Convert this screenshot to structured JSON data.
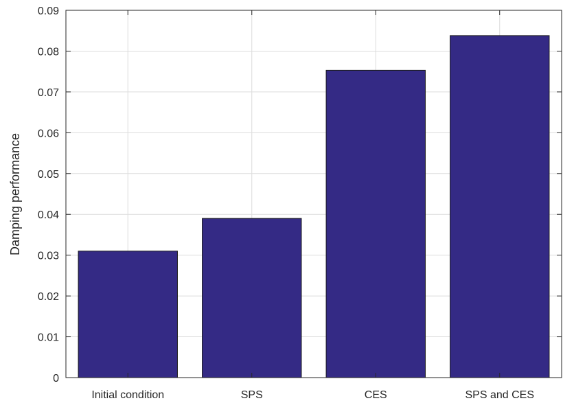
{
  "chart_data": {
    "type": "bar",
    "categories": [
      "Initial condition",
      "SPS",
      "CES",
      "SPS and CES"
    ],
    "values": [
      0.031,
      0.039,
      0.0753,
      0.0838
    ],
    "title": "",
    "xlabel": "",
    "ylabel": "Damping performance",
    "ylim": [
      0,
      0.09
    ],
    "yticks": [
      "0",
      "0.01",
      "0.02",
      "0.03",
      "0.04",
      "0.05",
      "0.06",
      "0.07",
      "0.08",
      "0.09"
    ],
    "grid": true,
    "bar_color": "#342a85"
  }
}
